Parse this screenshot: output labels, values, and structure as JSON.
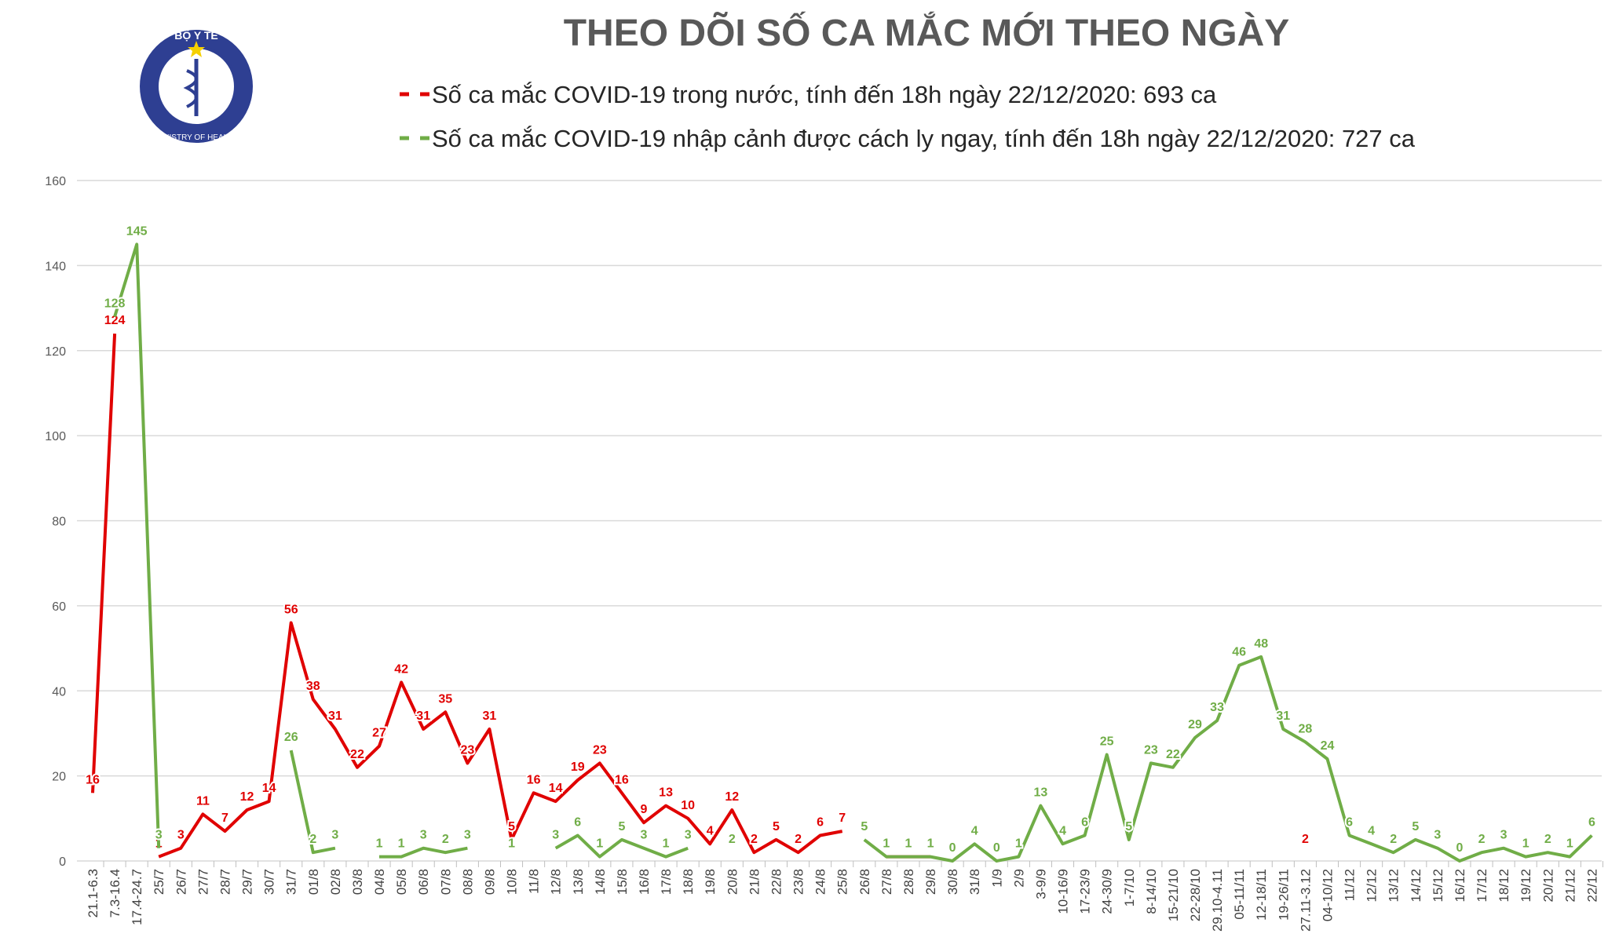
{
  "header": {
    "logo_top": "BỘ Y TẾ",
    "logo_bottom": "MINISTRY OF HEALTH"
  },
  "chart_data": {
    "type": "line",
    "title": "THEO DÕI SỐ CA MẮC MỚI THEO NGÀY",
    "categories": [
      "21.1-6.3",
      "7.3-16.4",
      "17.4-24.7",
      "25/7",
      "26/7",
      "27/7",
      "28/7",
      "29/7",
      "30/7",
      "31/7",
      "01/8",
      "02/8",
      "03/8",
      "04/8",
      "05/8",
      "06/8",
      "07/8",
      "08/8",
      "09/8",
      "10/8",
      "11/8",
      "12/8",
      "13/8",
      "14/8",
      "15/8",
      "16/8",
      "17/8",
      "18/8",
      "19/8",
      "20/8",
      "21/8",
      "22/8",
      "23/8",
      "24/8",
      "25/8",
      "26/8",
      "27/8",
      "28/8",
      "29/8",
      "30/8",
      "31/8",
      "1/9",
      "2/9",
      "3-9/9",
      "10-16/9",
      "17-23/9",
      "24-30/9",
      "1-7/10",
      "8-14/10",
      "15-21/10",
      "22-28/10",
      "29.10-4.11",
      "05-11/11",
      "12-18/11",
      "19-26/11",
      "27.11-3.12",
      "04-10/12",
      "11/12",
      "12/12",
      "13/12",
      "14/12",
      "15/12",
      "16/12",
      "17/12",
      "18/12",
      "19/12",
      "20/12",
      "21/12",
      "22/12"
    ],
    "series": [
      {
        "name": "Số ca mắc COVID-19 trong nước, tính đến 18h ngày 22/12/2020: 693 ca",
        "color": "#e00000",
        "values": [
          16,
          124,
          null,
          1,
          3,
          11,
          7,
          12,
          14,
          56,
          38,
          31,
          22,
          27,
          42,
          31,
          35,
          23,
          31,
          5,
          16,
          14,
          19,
          23,
          16,
          9,
          13,
          10,
          4,
          12,
          2,
          5,
          2,
          6,
          7,
          null,
          1,
          1,
          1,
          null,
          null,
          null,
          1,
          null,
          null,
          null,
          null,
          null,
          null,
          null,
          null,
          null,
          null,
          null,
          null,
          2,
          null,
          null,
          null,
          null,
          null,
          null,
          null,
          null,
          null,
          null,
          null,
          null,
          null
        ]
      },
      {
        "name": "Số ca mắc COVID-19 nhập cảnh được cách ly ngay, tính đến 18h ngày 22/12/2020: 727 ca",
        "color": "#70ad47",
        "values": [
          null,
          128,
          145,
          3,
          null,
          null,
          null,
          null,
          null,
          26,
          2,
          3,
          null,
          1,
          1,
          3,
          2,
          3,
          null,
          1,
          null,
          3,
          6,
          1,
          5,
          3,
          1,
          3,
          null,
          2,
          null,
          null,
          null,
          null,
          null,
          5,
          1,
          1,
          1,
          0,
          4,
          0,
          1,
          13,
          4,
          6,
          25,
          5,
          23,
          22,
          29,
          33,
          46,
          48,
          31,
          28,
          24,
          6,
          4,
          2,
          5,
          3,
          0,
          2,
          3,
          1,
          2,
          1,
          6
        ]
      }
    ],
    "ylim": [
      0,
      160
    ],
    "yticks": [
      0,
      20,
      40,
      60,
      80,
      100,
      120,
      140,
      160
    ],
    "grid": true
  }
}
